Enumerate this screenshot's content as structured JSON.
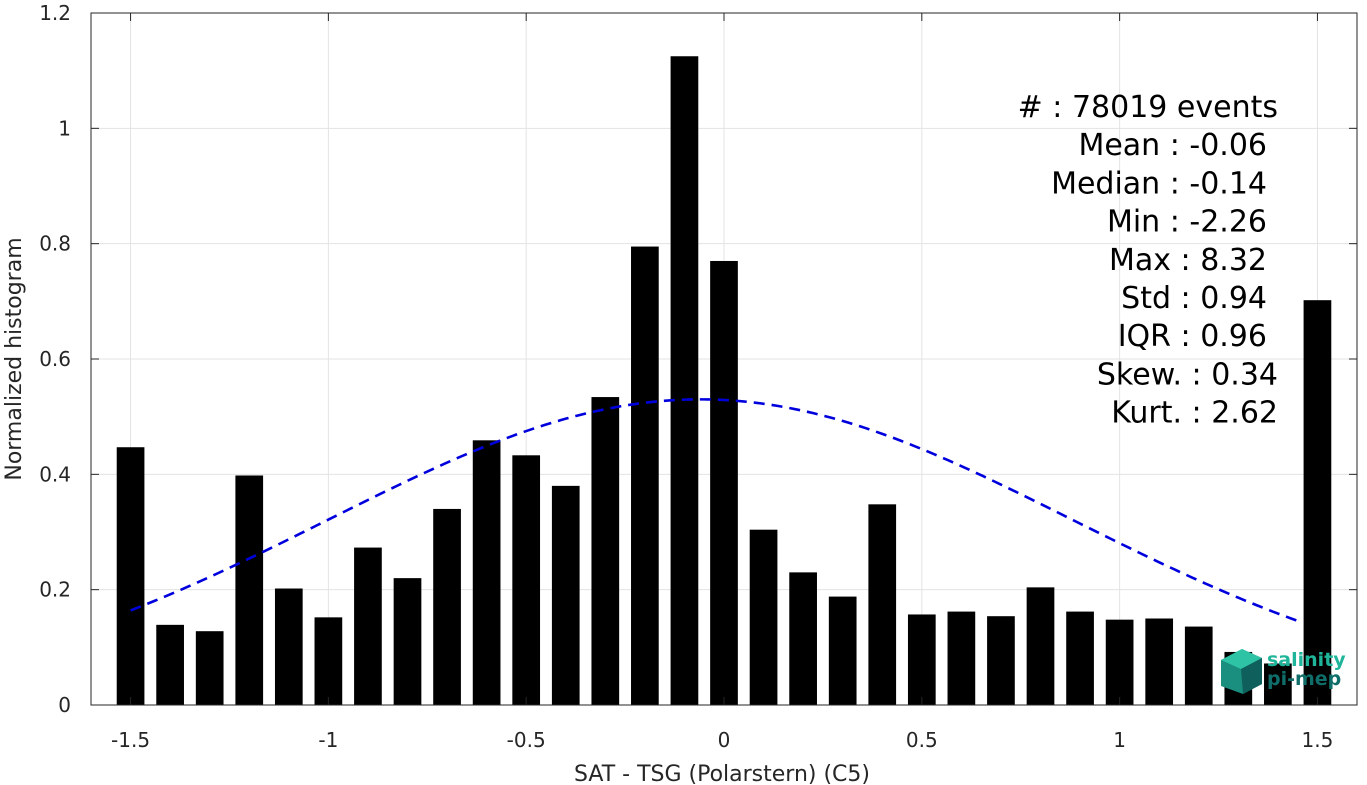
{
  "chart_data": {
    "type": "bar",
    "xlabel": "SAT - TSG (Polarstern) (C5)",
    "ylabel": "Normalized histogram",
    "xlim": [
      -1.6,
      1.6
    ],
    "ylim": [
      0,
      1.2
    ],
    "xticks": [
      "-1.5",
      "-1",
      "-0.5",
      "0",
      "0.5",
      "1",
      "1.5"
    ],
    "xtick_values": [
      -1.5,
      -1,
      -0.5,
      0,
      0.5,
      1,
      1.5
    ],
    "yticks": [
      "0",
      "0.2",
      "0.4",
      "0.6",
      "0.8",
      "1",
      "1.2"
    ],
    "ytick_values": [
      0,
      0.2,
      0.4,
      0.6,
      0.8,
      1.0,
      1.2
    ],
    "grid": true,
    "bar_color": "#000000",
    "bins": {
      "x": [
        -1.5,
        -1.4,
        -1.3,
        -1.2,
        -1.1,
        -1.0,
        -0.9,
        -0.8,
        -0.7,
        -0.6,
        -0.5,
        -0.4,
        -0.3,
        -0.2,
        -0.1,
        0.0,
        0.1,
        0.2,
        0.3,
        0.4,
        0.5,
        0.6,
        0.7,
        0.8,
        0.9,
        1.0,
        1.1,
        1.2,
        1.3,
        1.4,
        1.5
      ],
      "values": [
        0.447,
        0.139,
        0.128,
        0.398,
        0.202,
        0.152,
        0.273,
        0.22,
        0.34,
        0.459,
        0.433,
        0.38,
        0.534,
        0.795,
        1.125,
        0.77,
        0.304,
        0.23,
        0.188,
        0.348,
        0.157,
        0.162,
        0.154,
        0.204,
        0.162,
        0.148,
        0.15,
        0.136,
        0.092,
        0.072,
        0.702
      ]
    },
    "fit_curve": {
      "type": "gaussian",
      "mean": -0.06,
      "std": 0.94,
      "peak": 0.53,
      "x_range": [
        -1.5,
        1.45
      ],
      "color": "#0000dd",
      "style": "dashed"
    },
    "stats": [
      {
        "label": "#  : 78019 events"
      },
      {
        "label": "Mean : -0.06"
      },
      {
        "label": "Median : -0.14"
      },
      {
        "label": "Min : -2.26"
      },
      {
        "label": "Max : 8.32"
      },
      {
        "label": "Std : 0.94"
      },
      {
        "label": "IQR : 0.96"
      },
      {
        "label": "Skew. : 0.34"
      },
      {
        "label": "Kurt. : 2.62"
      }
    ]
  },
  "logo": {
    "line1": "salinity",
    "line2": "pi-mep",
    "color1": "#1fb59a",
    "color2": "#0f6e6a"
  }
}
